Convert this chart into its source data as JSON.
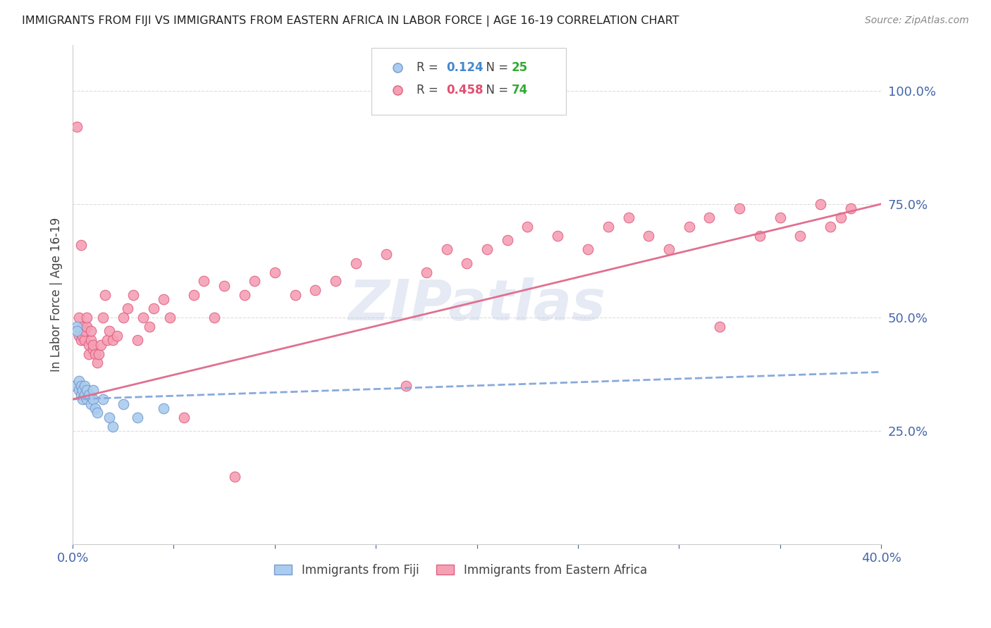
{
  "title": "IMMIGRANTS FROM FIJI VS IMMIGRANTS FROM EASTERN AFRICA IN LABOR FORCE | AGE 16-19 CORRELATION CHART",
  "source": "Source: ZipAtlas.com",
  "ylabel": "In Labor Force | Age 16-19",
  "x_min": 0.0,
  "x_max": 0.4,
  "y_min": 0.0,
  "y_max": 1.1,
  "y_ticks_right": [
    0.25,
    0.5,
    0.75,
    1.0
  ],
  "y_tick_labels_right": [
    "25.0%",
    "50.0%",
    "75.0%",
    "100.0%"
  ],
  "fiji_color": "#aaccee",
  "fiji_edge_color": "#7799cc",
  "eastern_africa_color": "#f5a0b5",
  "eastern_africa_edge_color": "#e06080",
  "fiji_line_color": "#88aadd",
  "eastern_africa_line_color": "#e07090",
  "R_fiji": 0.124,
  "N_fiji": 25,
  "R_eastern": 0.458,
  "N_eastern": 74,
  "grid_color": "#dddddd",
  "watermark": "ZIPatlas",
  "watermark_color": "#aabbdd",
  "background_color": "#ffffff",
  "legend_R_color_fiji": "#4488cc",
  "legend_R_color_eastern": "#e05070",
  "legend_N_color": "#33aa33",
  "fiji_x": [
    0.001,
    0.002,
    0.002,
    0.003,
    0.003,
    0.004,
    0.004,
    0.005,
    0.005,
    0.006,
    0.006,
    0.007,
    0.007,
    0.008,
    0.009,
    0.01,
    0.01,
    0.011,
    0.012,
    0.015,
    0.018,
    0.02,
    0.025,
    0.032,
    0.045
  ],
  "fiji_y": [
    0.35,
    0.48,
    0.47,
    0.36,
    0.34,
    0.33,
    0.35,
    0.32,
    0.34,
    0.35,
    0.33,
    0.32,
    0.34,
    0.33,
    0.31,
    0.32,
    0.34,
    0.3,
    0.29,
    0.32,
    0.28,
    0.26,
    0.31,
    0.28,
    0.3
  ],
  "eastern_x": [
    0.002,
    0.003,
    0.003,
    0.004,
    0.004,
    0.005,
    0.005,
    0.006,
    0.006,
    0.007,
    0.007,
    0.008,
    0.008,
    0.009,
    0.009,
    0.01,
    0.01,
    0.011,
    0.012,
    0.013,
    0.014,
    0.015,
    0.016,
    0.017,
    0.018,
    0.02,
    0.022,
    0.025,
    0.027,
    0.03,
    0.032,
    0.035,
    0.038,
    0.04,
    0.045,
    0.048,
    0.055,
    0.06,
    0.065,
    0.07,
    0.075,
    0.08,
    0.085,
    0.09,
    0.1,
    0.11,
    0.12,
    0.13,
    0.14,
    0.155,
    0.165,
    0.175,
    0.185,
    0.195,
    0.205,
    0.215,
    0.225,
    0.24,
    0.255,
    0.265,
    0.275,
    0.285,
    0.295,
    0.305,
    0.315,
    0.32,
    0.33,
    0.34,
    0.35,
    0.36,
    0.37,
    0.375,
    0.38,
    0.385
  ],
  "eastern_y": [
    0.92,
    0.5,
    0.46,
    0.66,
    0.45,
    0.46,
    0.48,
    0.45,
    0.47,
    0.48,
    0.5,
    0.42,
    0.44,
    0.45,
    0.47,
    0.43,
    0.44,
    0.42,
    0.4,
    0.42,
    0.44,
    0.5,
    0.55,
    0.45,
    0.47,
    0.45,
    0.46,
    0.5,
    0.52,
    0.55,
    0.45,
    0.5,
    0.48,
    0.52,
    0.54,
    0.5,
    0.28,
    0.55,
    0.58,
    0.5,
    0.57,
    0.15,
    0.55,
    0.58,
    0.6,
    0.55,
    0.56,
    0.58,
    0.62,
    0.64,
    0.35,
    0.6,
    0.65,
    0.62,
    0.65,
    0.67,
    0.7,
    0.68,
    0.65,
    0.7,
    0.72,
    0.68,
    0.65,
    0.7,
    0.72,
    0.48,
    0.74,
    0.68,
    0.72,
    0.68,
    0.75,
    0.7,
    0.72,
    0.74
  ]
}
